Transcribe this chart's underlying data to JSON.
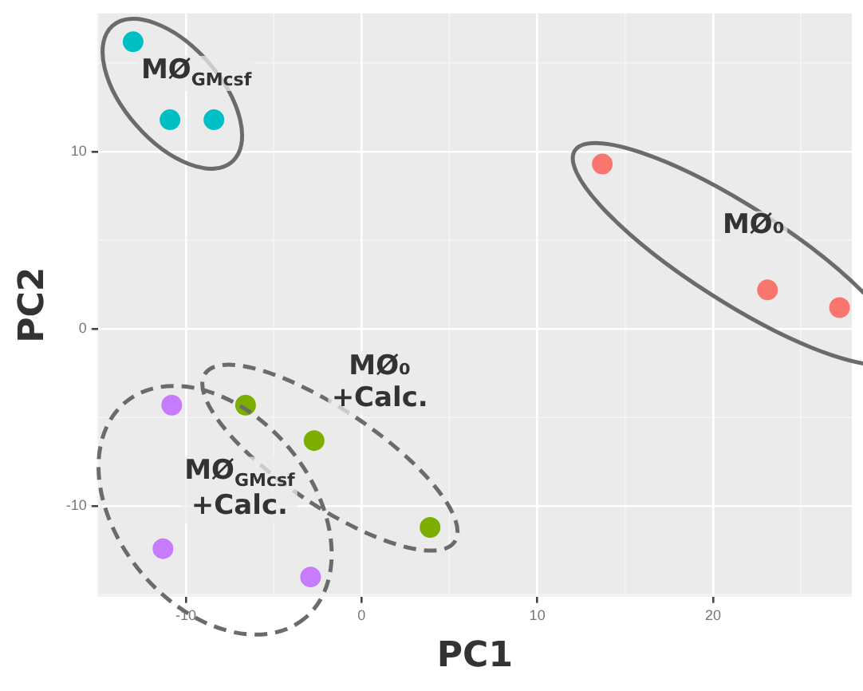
{
  "chart_data": {
    "type": "scatter",
    "xlabel": "PC1",
    "ylabel": "PC2",
    "xlim": [
      -15,
      27.9
    ],
    "ylim": [
      -15.1,
      17.8
    ],
    "xticks": [
      -10,
      0,
      10,
      20
    ],
    "yticks": [
      -10,
      0,
      10
    ],
    "grid": true,
    "legend": false,
    "marker": "circle",
    "series": [
      {
        "color": "#00bfc4",
        "x": [
          -13.0,
          -10.9,
          -8.4
        ],
        "values": [
          16.2,
          11.8,
          11.8
        ]
      },
      {
        "color": "#f8766d",
        "x": [
          13.7,
          23.1,
          27.2
        ],
        "values": [
          9.3,
          2.2,
          1.2
        ]
      },
      {
        "color": "#c77cff",
        "x": [
          -10.8,
          -11.3,
          -2.9
        ],
        "values": [
          -4.3,
          -12.4,
          -14.0
        ]
      },
      {
        "color": "#7cae00",
        "x": [
          -6.6,
          -2.7,
          3.9
        ],
        "values": [
          -4.3,
          -6.3,
          -11.2
        ]
      }
    ],
    "annotations": [
      "MØ$_{GMcsf}$",
      "MØ₀",
      "MØ$_{GMcsf}$\n+Calc.",
      "MØ₀\n+Calc."
    ]
  }
}
